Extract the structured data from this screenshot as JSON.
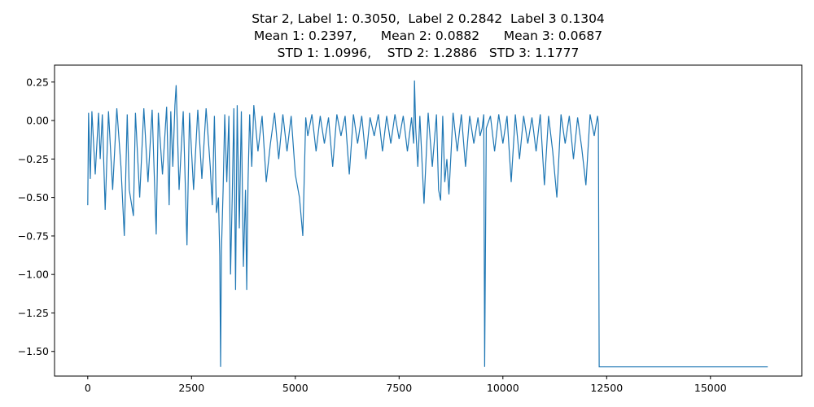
{
  "chart_data": {
    "type": "line",
    "title": [
      "Star 2, Label 1: 0.3050,  Label 2 0.2842  Label 3 0.1304",
      "Mean 1: 0.2397,      Mean 2: 0.0882      Mean 3: 0.0687",
      "STD 1: 1.0996,    STD 2: 1.2886   STD 3: 1.1777"
    ],
    "xlabel": "",
    "ylabel": "",
    "xlim": [
      -800,
      17200
    ],
    "ylim": [
      -1.66,
      0.36
    ],
    "x_ticks": [
      0,
      2500,
      5000,
      7500,
      10000,
      12500,
      15000
    ],
    "x_tick_labels": [
      "0",
      "2500",
      "5000",
      "7500",
      "10000",
      "12500",
      "15000"
    ],
    "y_ticks": [
      0.25,
      0.0,
      -0.25,
      -0.5,
      -0.75,
      -1.0,
      -1.25,
      -1.5
    ],
    "y_tick_labels": [
      "0.25",
      "0.00",
      "−0.25",
      "−0.50",
      "−0.75",
      "−1.00",
      "−1.25",
      "−1.50"
    ],
    "grid": false,
    "line_color": "#1f77b4",
    "series": [
      {
        "x": [
          0,
          20,
          60,
          100,
          180,
          260,
          300,
          350,
          420,
          500,
          600,
          700,
          800,
          880,
          950,
          1000,
          1100,
          1150,
          1250,
          1350,
          1450,
          1550,
          1650,
          1700,
          1800,
          1900,
          1960,
          2000,
          2050,
          2100,
          2130,
          2200,
          2300,
          2390,
          2450,
          2550,
          2650,
          2750,
          2850,
          2950,
          3000,
          3050,
          3100,
          3150,
          3180,
          3200,
          3220,
          3260,
          3300,
          3350,
          3400,
          3440,
          3480,
          3520,
          3560,
          3600,
          3650,
          3700,
          3750,
          3800,
          3830,
          3860,
          3900,
          3950,
          4000,
          4100,
          4200,
          4300,
          4400,
          4500,
          4600,
          4700,
          4800,
          4900,
          5000,
          5100,
          5180,
          5250,
          5300,
          5400,
          5500,
          5600,
          5700,
          5800,
          5900,
          6000,
          6100,
          6200,
          6300,
          6400,
          6500,
          6600,
          6700,
          6800,
          6900,
          7000,
          7100,
          7200,
          7300,
          7400,
          7500,
          7600,
          7700,
          7800,
          7850,
          7870,
          7900,
          7950,
          8000,
          8100,
          8200,
          8300,
          8400,
          8450,
          8500,
          8550,
          8600,
          8650,
          8700,
          8800,
          8900,
          9000,
          9100,
          9200,
          9300,
          9400,
          9450,
          9500,
          9540,
          9560,
          9600,
          9700,
          9800,
          9900,
          10000,
          10100,
          10200,
          10300,
          10400,
          10500,
          10600,
          10700,
          10800,
          10900,
          11000,
          11100,
          11200,
          11300,
          11400,
          11500,
          11600,
          11700,
          11800,
          11900,
          12000,
          12100,
          12200,
          12280,
          12300,
          12320,
          16380
        ],
        "y": [
          -0.55,
          0.05,
          -0.38,
          0.06,
          -0.35,
          0.05,
          -0.25,
          0.04,
          -0.58,
          0.06,
          -0.45,
          0.08,
          -0.3,
          -0.75,
          0.04,
          -0.45,
          -0.62,
          0.05,
          -0.5,
          0.08,
          -0.4,
          0.07,
          -0.74,
          0.05,
          -0.35,
          0.09,
          -0.55,
          0.06,
          -0.3,
          0.1,
          0.23,
          -0.45,
          0.06,
          -0.81,
          0.05,
          -0.45,
          0.07,
          -0.38,
          0.08,
          -0.3,
          -0.55,
          0.03,
          -0.6,
          -0.5,
          -0.88,
          -1.6,
          -0.85,
          -0.45,
          0.04,
          -0.4,
          0.03,
          -1.0,
          -0.5,
          0.08,
          -1.1,
          0.1,
          -0.7,
          0.06,
          -0.95,
          -0.45,
          -1.1,
          -0.4,
          0.04,
          -0.3,
          0.1,
          -0.2,
          0.03,
          -0.4,
          -0.15,
          0.05,
          -0.25,
          0.04,
          -0.2,
          0.03,
          -0.35,
          -0.5,
          -0.75,
          0.02,
          -0.1,
          0.04,
          -0.2,
          0.03,
          -0.15,
          0.02,
          -0.3,
          0.04,
          -0.1,
          0.03,
          -0.35,
          0.04,
          -0.15,
          0.03,
          -0.25,
          0.02,
          -0.1,
          0.04,
          -0.2,
          0.03,
          -0.15,
          0.04,
          -0.12,
          0.03,
          -0.2,
          0.02,
          -0.15,
          0.26,
          -0.05,
          -0.3,
          0.03,
          -0.54,
          0.05,
          -0.3,
          0.04,
          -0.45,
          -0.52,
          0.03,
          -0.4,
          -0.25,
          -0.48,
          0.05,
          -0.2,
          0.04,
          -0.3,
          0.03,
          -0.15,
          0.02,
          -0.1,
          -0.05,
          0.04,
          -1.6,
          -0.05,
          0.03,
          -0.2,
          0.04,
          -0.15,
          0.03,
          -0.4,
          0.04,
          -0.25,
          0.03,
          -0.15,
          0.02,
          -0.2,
          0.04,
          -0.42,
          0.03,
          -0.2,
          -0.5,
          0.04,
          -0.15,
          0.03,
          -0.25,
          0.02,
          -0.18,
          -0.42,
          0.04,
          -0.1,
          0.03,
          -0.02,
          -1.6,
          -1.6
        ]
      }
    ]
  }
}
